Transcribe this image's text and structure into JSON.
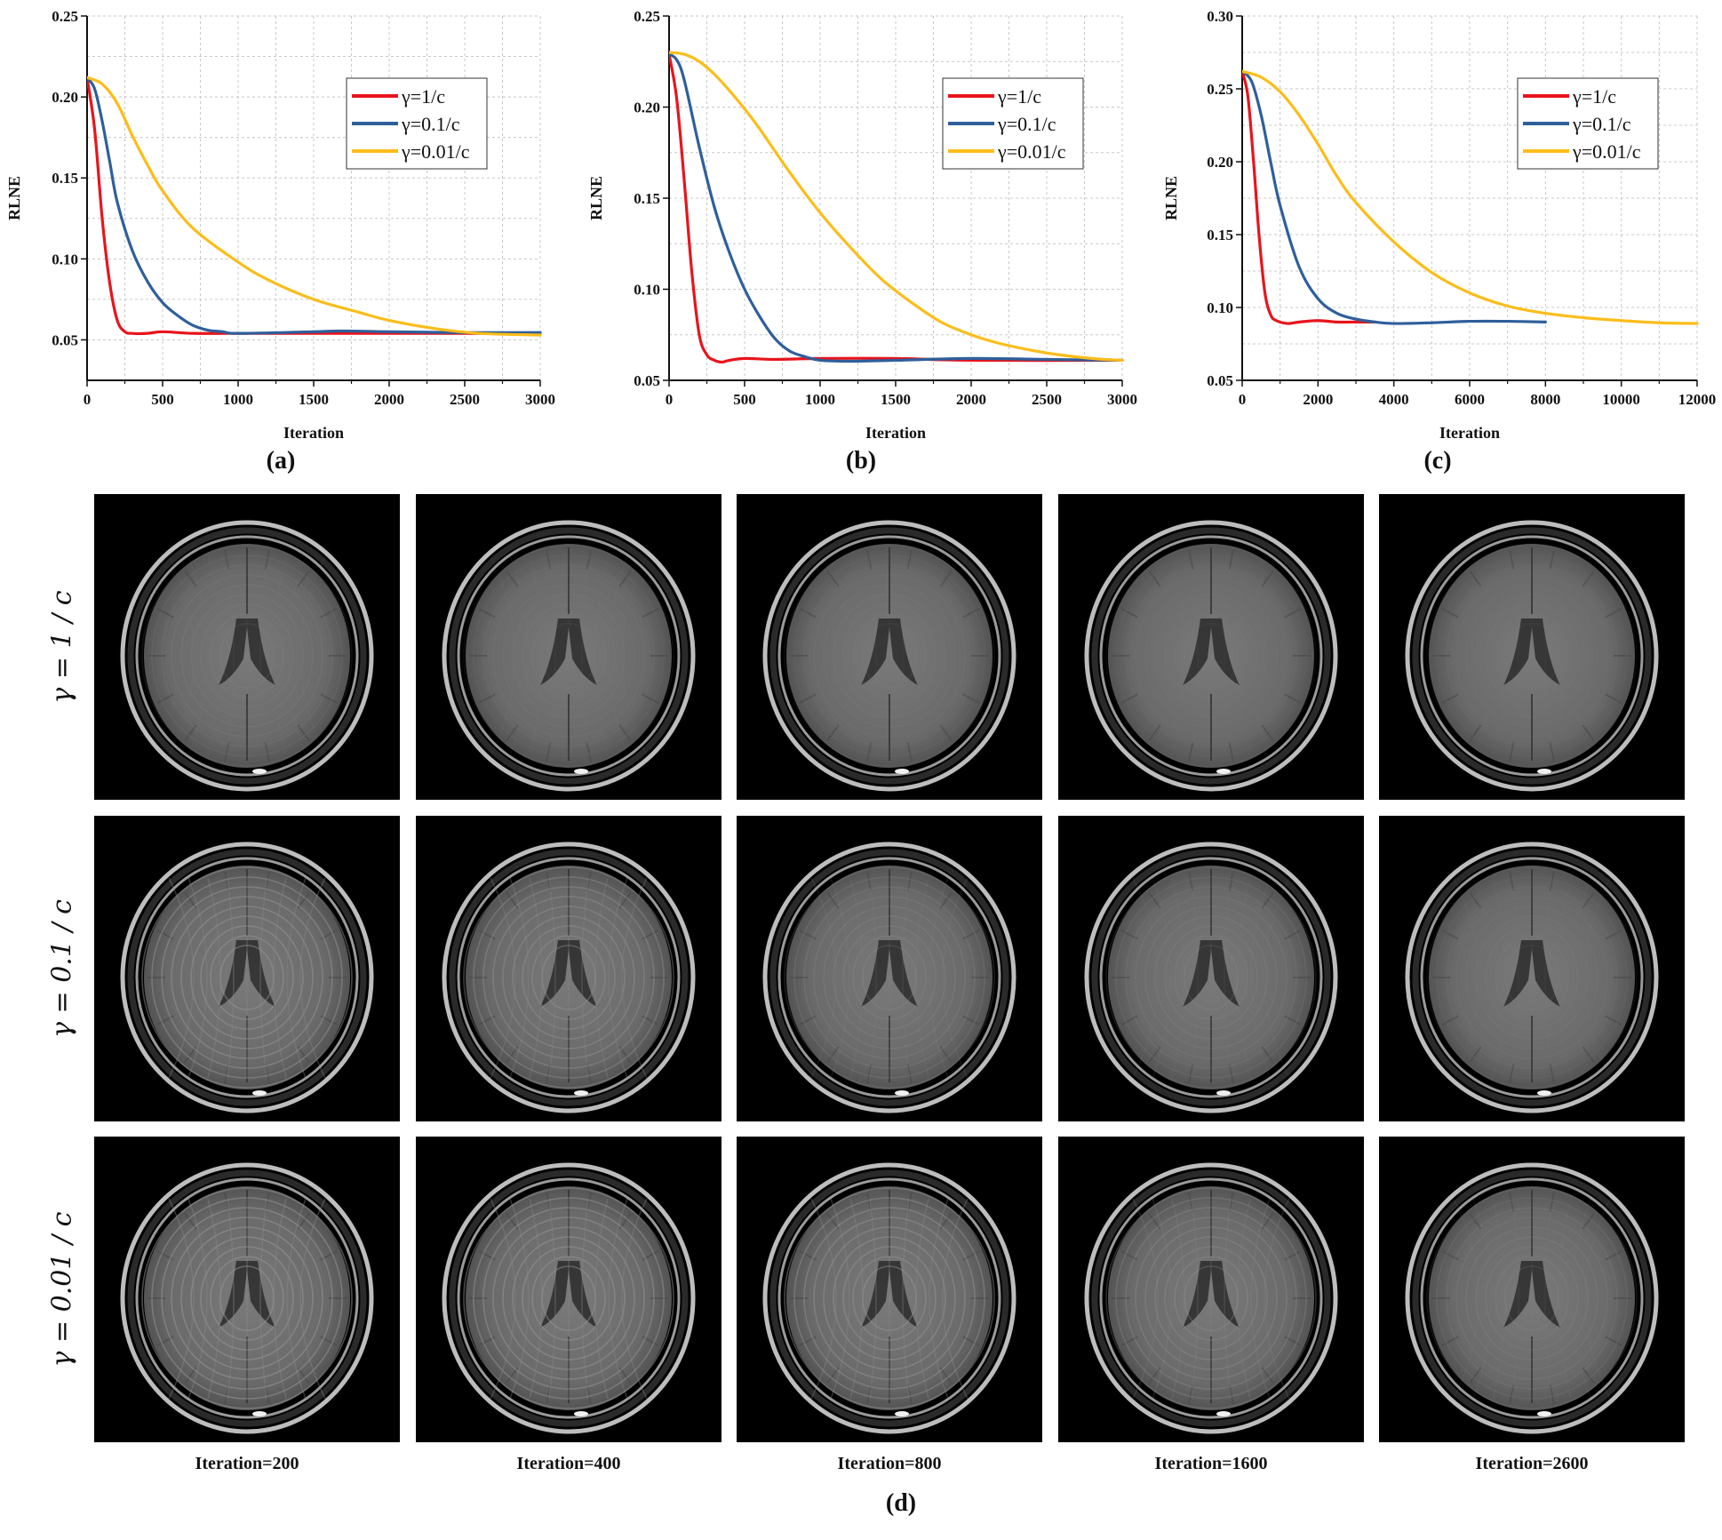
{
  "chart_data": [
    {
      "type": "line",
      "panel_label": "(a)",
      "xlabel": "Iteration",
      "ylabel": "RLNE",
      "xlim": [
        0,
        3000
      ],
      "ylim": [
        0.025,
        0.25
      ],
      "xticks": [
        0,
        500,
        1000,
        1500,
        2000,
        2500,
        3000
      ],
      "xtick_labels": [
        "0",
        "500",
        "1000",
        "1500",
        "2000",
        "2500",
        "3000"
      ],
      "yticks": [
        0.05,
        0.1,
        0.15,
        0.2,
        0.25
      ],
      "ytick_labels": [
        "0.05",
        "0.10",
        "0.15",
        "0.20",
        "0.25"
      ],
      "grid": true,
      "legend_position": "top-right",
      "series": [
        {
          "name": "γ=1/c",
          "color": "#e8141c",
          "x": [
            0,
            50,
            100,
            150,
            200,
            250,
            300,
            400,
            500,
            700,
            1000,
            1500,
            2000,
            3000
          ],
          "y": [
            0.212,
            0.18,
            0.125,
            0.085,
            0.062,
            0.055,
            0.054,
            0.054,
            0.055,
            0.054,
            0.054,
            0.054,
            0.054,
            0.054
          ]
        },
        {
          "name": "γ=0.1/c",
          "color": "#2e5f9b",
          "x": [
            0,
            50,
            100,
            150,
            200,
            300,
            400,
            500,
            600,
            700,
            800,
            900,
            1000,
            1500,
            1700,
            2000,
            2500,
            3000
          ],
          "y": [
            0.212,
            0.205,
            0.185,
            0.16,
            0.135,
            0.105,
            0.086,
            0.073,
            0.065,
            0.059,
            0.056,
            0.055,
            0.054,
            0.055,
            0.0555,
            0.055,
            0.0545,
            0.0545
          ]
        },
        {
          "name": "γ=0.01/c",
          "color": "#fbbd1a",
          "x": [
            0,
            100,
            200,
            300,
            400,
            500,
            700,
            1000,
            1200,
            1500,
            1800,
            2000,
            2300,
            2600,
            3000
          ],
          "y": [
            0.212,
            0.208,
            0.196,
            0.176,
            0.158,
            0.142,
            0.119,
            0.098,
            0.087,
            0.075,
            0.067,
            0.062,
            0.057,
            0.054,
            0.053
          ]
        }
      ]
    },
    {
      "type": "line",
      "panel_label": "(b)",
      "xlabel": "Iteration",
      "ylabel": "RLNE",
      "xlim": [
        0,
        3000
      ],
      "ylim": [
        0.05,
        0.25
      ],
      "xticks": [
        0,
        500,
        1000,
        1500,
        2000,
        2500,
        3000
      ],
      "xtick_labels": [
        "0",
        "500",
        "1000",
        "1500",
        "2000",
        "2500",
        "3000"
      ],
      "yticks": [
        0.05,
        0.1,
        0.15,
        0.2,
        0.25
      ],
      "ytick_labels": [
        "0.05",
        "0.10",
        "0.15",
        "0.20",
        "0.25"
      ],
      "grid": true,
      "legend_position": "top-right",
      "series": [
        {
          "name": "γ=1/c",
          "color": "#e8141c",
          "x": [
            0,
            50,
            100,
            150,
            200,
            250,
            300,
            350,
            400,
            500,
            700,
            1000,
            1500,
            2000,
            3000
          ],
          "y": [
            0.229,
            0.205,
            0.16,
            0.11,
            0.075,
            0.064,
            0.061,
            0.06,
            0.061,
            0.062,
            0.0615,
            0.062,
            0.062,
            0.061,
            0.061
          ]
        },
        {
          "name": "γ=0.1/c",
          "color": "#2e5f9b",
          "x": [
            0,
            50,
            100,
            200,
            300,
            400,
            500,
            600,
            700,
            800,
            900,
            1000,
            1200,
            1500,
            2000,
            2500,
            3000
          ],
          "y": [
            0.229,
            0.226,
            0.215,
            0.178,
            0.145,
            0.12,
            0.1,
            0.085,
            0.073,
            0.066,
            0.063,
            0.061,
            0.0605,
            0.061,
            0.062,
            0.0615,
            0.061
          ]
        },
        {
          "name": "γ=0.01/c",
          "color": "#fbbd1a",
          "x": [
            0,
            100,
            200,
            300,
            400,
            500,
            600,
            800,
            1000,
            1200,
            1400,
            1600,
            1800,
            2000,
            2200,
            2500,
            2800,
            3000
          ],
          "y": [
            0.23,
            0.229,
            0.225,
            0.218,
            0.209,
            0.199,
            0.188,
            0.164,
            0.142,
            0.123,
            0.106,
            0.093,
            0.082,
            0.075,
            0.07,
            0.065,
            0.062,
            0.061
          ]
        }
      ]
    },
    {
      "type": "line",
      "panel_label": "(c)",
      "xlabel": "Iteration",
      "ylabel": "RLNE",
      "xlim": [
        0,
        12000
      ],
      "ylim": [
        0.05,
        0.3
      ],
      "xticks": [
        0,
        2000,
        4000,
        6000,
        8000,
        10000,
        12000
      ],
      "xtick_labels": [
        "0",
        "2000",
        "4000",
        "6000",
        "8000",
        "10000",
        "12000"
      ],
      "yticks": [
        0.05,
        0.1,
        0.15,
        0.2,
        0.25,
        0.3
      ],
      "ytick_labels": [
        "0.05",
        "0.10",
        "0.15",
        "0.20",
        "0.25",
        "0.30"
      ],
      "grid": true,
      "legend_position": "top-right",
      "series": [
        {
          "name": "γ=1/c",
          "color": "#e8141c",
          "x": [
            0,
            150,
            300,
            450,
            600,
            750,
            900,
            1200,
            1500,
            2000,
            2500,
            3000,
            3500
          ],
          "y": [
            0.262,
            0.245,
            0.2,
            0.148,
            0.11,
            0.095,
            0.091,
            0.089,
            0.09,
            0.091,
            0.09,
            0.09,
            0.09
          ]
        },
        {
          "name": "γ=0.1/c",
          "color": "#2e5f9b",
          "x": [
            0,
            250,
            500,
            750,
            1000,
            1500,
            2000,
            2500,
            3000,
            3500,
            4000,
            5000,
            6000,
            7000,
            8000
          ],
          "y": [
            0.262,
            0.255,
            0.232,
            0.2,
            0.17,
            0.128,
            0.106,
            0.096,
            0.092,
            0.09,
            0.089,
            0.0895,
            0.0905,
            0.0905,
            0.09
          ]
        },
        {
          "name": "γ=0.01/c",
          "color": "#fbbd1a",
          "x": [
            0,
            500,
            1000,
            1500,
            2000,
            2500,
            3000,
            4000,
            5000,
            6000,
            7000,
            8000,
            9000,
            10000,
            11000,
            12000
          ],
          "y": [
            0.262,
            0.258,
            0.248,
            0.232,
            0.212,
            0.19,
            0.172,
            0.145,
            0.124,
            0.11,
            0.101,
            0.096,
            0.093,
            0.091,
            0.0895,
            0.089
          ]
        }
      ]
    }
  ],
  "figure_d": {
    "panel_label": "(d)",
    "row_labels": [
      "γ = 1 / c",
      "γ = 0.1 / c",
      "γ = 0.01 / c"
    ],
    "column_labels": [
      "Iteration=200",
      "Iteration=400",
      "Iteration=800",
      "Iteration=1600",
      "Iteration=2600"
    ],
    "artifact_level": [
      [
        0.2,
        0.15,
        0.12,
        0.1,
        0.1
      ],
      [
        0.85,
        0.7,
        0.35,
        0.25,
        0.15
      ],
      [
        0.9,
        0.85,
        0.8,
        0.5,
        0.25
      ]
    ]
  }
}
